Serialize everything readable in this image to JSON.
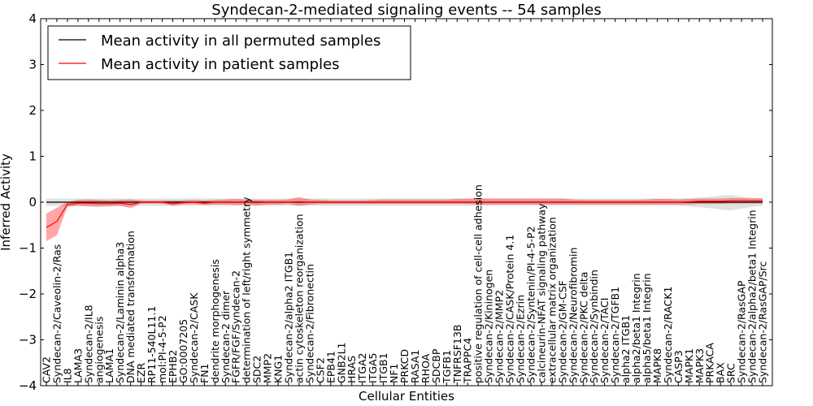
{
  "chart_data": {
    "type": "line",
    "title": "Syndecan-2-mediated signaling events -- 54 samples",
    "xlabel": "Cellular Entities",
    "ylabel": "Inferred Activity",
    "ylim": [
      -4,
      4
    ],
    "yticks": [
      "−4",
      "−3",
      "−2",
      "−1",
      "0",
      "1",
      "2",
      "3",
      "4"
    ],
    "yticks_values": [
      -4,
      -3,
      -2,
      -1,
      0,
      1,
      2,
      3,
      4
    ],
    "legend": {
      "location": "top-left",
      "entries": [
        "Mean activity in all permuted samples",
        "Mean activity in patient samples"
      ]
    },
    "categories": [
      "CAV2",
      "Syndecan-2/Caveolin-2/Ras",
      "IL8",
      "LAMA3",
      "Syndecan-2/IL8",
      "angiogenesis",
      "LAMA1",
      "Syndecan-2/Laminin alpha3",
      "DNA mediated transformation",
      "EZR",
      "RP11-540L11.1",
      "mol:PI-4-5-P2",
      "EPHB2",
      "GO:0007205",
      "Syndecan-2/CASK",
      "FN1",
      "dendrite morphogenesis",
      "Syndecan-2 dimer",
      "FGFR/FGF/Syndecan-2",
      "determination of left/right symmetry",
      "SDC2",
      "MMP2",
      "KNG1",
      "Syndecan-2/alpha2 ITGB1",
      "actin cytoskeleton reorganization",
      "Syndecan-2/Fibronectin",
      "CSF2",
      "EPB41",
      "GNB2L1",
      "HRAS",
      "ITGA2",
      "ITGA5",
      "ITGB1",
      "NF1",
      "PRKCD",
      "RASA1",
      "RHOA",
      "SDCBP",
      "TGFB1",
      "TNFRSF13B",
      "TRAPPC4",
      "positive regulation of cell-cell adhesion",
      "Syndecan-2/Kininogen",
      "Syndecan-2/MMP2",
      "Syndecan-2/CASK/Protein 4.1",
      "Syndecan-2/Ezrin",
      "Syndecan-2/Syntenin/PI-4-5-P2",
      "calcineurin-NFAT signaling pathway",
      "extracellular matrix organization",
      "Syndecan-2/GM-CSF",
      "Syndecan-2/Neurofibromin",
      "Syndecan-2/PKC delta",
      "Syndecan-2/Synbindin",
      "Syndecan-2/TACI",
      "Syndecan-2/TGFB1",
      "alpha2 ITGB1",
      "alpha2/beta1 Integrin",
      "alpha5/beta1 Integrin",
      "MAPK8",
      "Syndecan-2/RACK1",
      "CASP3",
      "MAPK1",
      "MAPK3",
      "PRKACA",
      "BAX",
      "SRC",
      "Syndecan-2/RasGAP",
      "Syndecan-2/alpha2/beta1 Integrin",
      "Syndecan-2/RasGAP/Src"
    ],
    "series": [
      {
        "name": "Mean activity in all permuted samples",
        "color": "#000000",
        "values": [
          0,
          0,
          0,
          0,
          0,
          0,
          0,
          0,
          0,
          0,
          0,
          0,
          0,
          0,
          0,
          0,
          0,
          0,
          0,
          0,
          0,
          0,
          0,
          0,
          0,
          0,
          0,
          0,
          0,
          0,
          0,
          0,
          0,
          0,
          0,
          0,
          0,
          0,
          0,
          0,
          0,
          0,
          0,
          0,
          0,
          0,
          0,
          0,
          0,
          0,
          0,
          0,
          0,
          0,
          0,
          0,
          0,
          0,
          0,
          0,
          0,
          0,
          0,
          0,
          0,
          0,
          0,
          0,
          0
        ],
        "band_lower": [
          -0.08,
          -0.08,
          -0.08,
          -0.08,
          -0.08,
          -0.08,
          -0.08,
          -0.08,
          -0.08,
          -0.08,
          -0.08,
          -0.08,
          -0.08,
          -0.08,
          -0.08,
          -0.08,
          -0.08,
          -0.08,
          -0.08,
          -0.08,
          -0.08,
          -0.08,
          -0.08,
          -0.08,
          -0.08,
          -0.08,
          -0.08,
          -0.08,
          -0.08,
          -0.08,
          -0.08,
          -0.08,
          -0.08,
          -0.08,
          -0.08,
          -0.08,
          -0.08,
          -0.08,
          -0.08,
          -0.08,
          -0.08,
          -0.08,
          -0.08,
          -0.08,
          -0.08,
          -0.08,
          -0.08,
          -0.08,
          -0.08,
          -0.08,
          -0.08,
          -0.08,
          -0.08,
          -0.08,
          -0.08,
          -0.08,
          -0.08,
          -0.08,
          -0.08,
          -0.08,
          -0.08,
          -0.09,
          -0.11,
          -0.13,
          -0.16,
          -0.18,
          -0.14,
          -0.1,
          -0.08
        ],
        "band_upper": [
          0.08,
          0.08,
          0.08,
          0.08,
          0.08,
          0.08,
          0.08,
          0.08,
          0.08,
          0.08,
          0.08,
          0.08,
          0.08,
          0.08,
          0.08,
          0.08,
          0.08,
          0.08,
          0.08,
          0.08,
          0.08,
          0.08,
          0.08,
          0.08,
          0.08,
          0.08,
          0.08,
          0.08,
          0.08,
          0.08,
          0.08,
          0.08,
          0.08,
          0.08,
          0.08,
          0.08,
          0.08,
          0.08,
          0.08,
          0.08,
          0.08,
          0.08,
          0.08,
          0.08,
          0.08,
          0.08,
          0.08,
          0.08,
          0.08,
          0.08,
          0.08,
          0.08,
          0.08,
          0.08,
          0.08,
          0.08,
          0.08,
          0.08,
          0.08,
          0.08,
          0.08,
          0.09,
          0.1,
          0.12,
          0.14,
          0.16,
          0.12,
          0.1,
          0.08
        ]
      },
      {
        "name": "Mean activity in patient samples",
        "color": "#ff0000",
        "values": [
          -0.55,
          -0.42,
          -0.05,
          -0.02,
          -0.02,
          -0.03,
          -0.03,
          -0.02,
          -0.05,
          0.0,
          0.0,
          0.0,
          -0.03,
          -0.01,
          0.0,
          -0.02,
          0.0,
          0.0,
          0.0,
          0.0,
          -0.01,
          0.0,
          0.0,
          0.0,
          0.01,
          0.0,
          0.0,
          0.0,
          0.0,
          0.0,
          0.0,
          0.0,
          0.0,
          0.0,
          0.0,
          0.0,
          0.0,
          0.0,
          0.0,
          0.0,
          0.0,
          0.0,
          0.0,
          0.0,
          0.0,
          0.0,
          0.0,
          0.0,
          0.0,
          0.0,
          0.0,
          0.0,
          0.0,
          0.0,
          0.0,
          0.0,
          0.0,
          0.0,
          0.0,
          0.0,
          0.0,
          0.01,
          0.02,
          0.02,
          0.02,
          0.03,
          0.03,
          0.03,
          0.03
        ],
        "band_lower": [
          -0.85,
          -0.72,
          -0.1,
          -0.08,
          -0.09,
          -0.1,
          -0.09,
          -0.08,
          -0.13,
          -0.03,
          -0.03,
          -0.03,
          -0.08,
          -0.05,
          -0.04,
          -0.06,
          -0.05,
          -0.05,
          -0.06,
          -0.06,
          -0.07,
          -0.05,
          -0.05,
          -0.04,
          -0.08,
          -0.05,
          -0.04,
          -0.04,
          -0.04,
          -0.04,
          -0.04,
          -0.04,
          -0.04,
          -0.04,
          -0.04,
          -0.04,
          -0.04,
          -0.04,
          -0.04,
          -0.04,
          -0.04,
          -0.05,
          -0.05,
          -0.05,
          -0.05,
          -0.05,
          -0.05,
          -0.05,
          -0.05,
          -0.05,
          -0.05,
          -0.05,
          -0.05,
          -0.05,
          -0.05,
          -0.05,
          -0.05,
          -0.05,
          -0.05,
          -0.05,
          -0.05,
          -0.05,
          -0.04,
          -0.04,
          -0.04,
          -0.03,
          -0.03,
          -0.03,
          -0.03
        ],
        "band_upper": [
          -0.25,
          -0.12,
          0.0,
          0.05,
          0.06,
          0.05,
          0.04,
          0.05,
          0.06,
          0.04,
          0.03,
          0.04,
          0.04,
          0.04,
          0.05,
          0.04,
          0.05,
          0.06,
          0.07,
          0.06,
          0.05,
          0.05,
          0.05,
          0.06,
          0.11,
          0.06,
          0.05,
          0.04,
          0.04,
          0.04,
          0.04,
          0.05,
          0.06,
          0.06,
          0.06,
          0.06,
          0.06,
          0.06,
          0.06,
          0.07,
          0.08,
          0.08,
          0.08,
          0.08,
          0.08,
          0.08,
          0.08,
          0.08,
          0.08,
          0.08,
          0.06,
          0.05,
          0.05,
          0.05,
          0.05,
          0.05,
          0.05,
          0.06,
          0.07,
          0.07,
          0.06,
          0.07,
          0.08,
          0.08,
          0.08,
          0.09,
          0.09,
          0.08,
          0.09
        ]
      }
    ]
  }
}
